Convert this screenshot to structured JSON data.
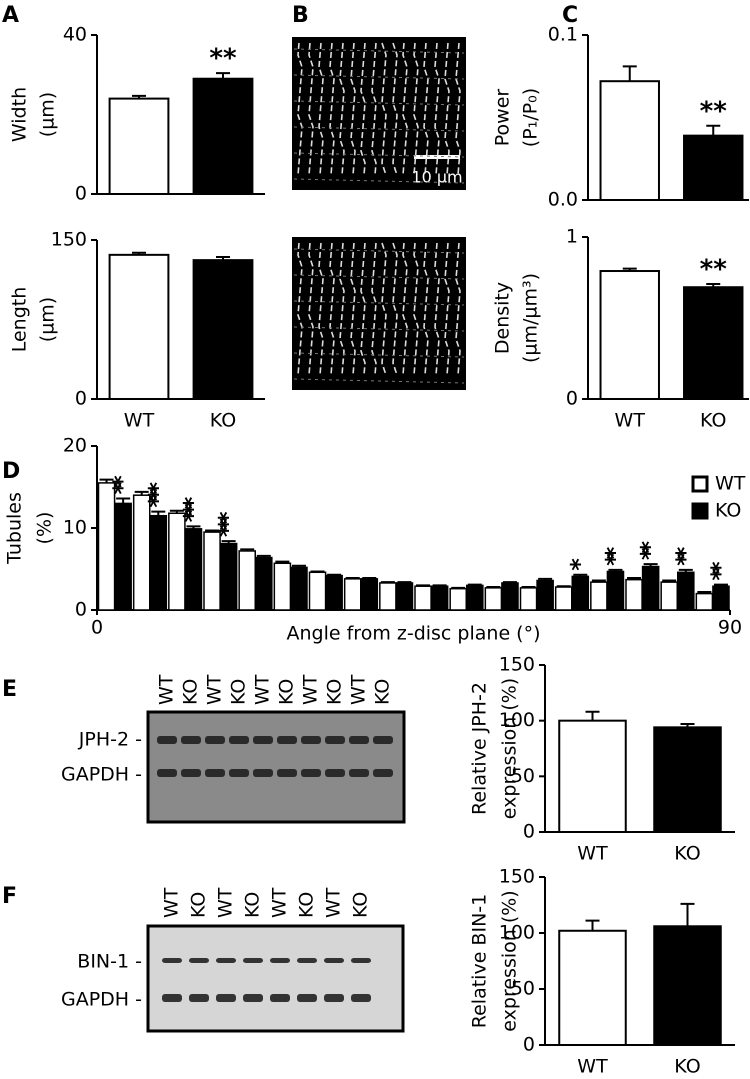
{
  "panels": {
    "labels": [
      "A",
      "B",
      "C",
      "D",
      "E",
      "F"
    ]
  },
  "images": {
    "scale_bar": "10 µm"
  },
  "blots": [
    {
      "lanes": [
        "WT",
        "KO",
        "WT",
        "KO",
        "WT",
        "KO",
        "WT",
        "KO",
        "WT",
        "KO"
      ],
      "bands": [
        "JPH-2 -",
        "GAPDH -"
      ]
    },
    {
      "lanes": [
        "WT",
        "KO",
        "WT",
        "KO",
        "WT",
        "KO",
        "WT",
        "KO"
      ],
      "bands": [
        "BIN-1 -",
        "GAPDH -"
      ]
    }
  ],
  "chart_data": [
    {
      "type": "bar",
      "categories": [
        null,
        null
      ],
      "values": [
        24,
        29
      ],
      "errors": [
        0.7,
        1.4
      ],
      "colors": [
        "#ffffff",
        "#000000"
      ],
      "annotations": [
        null,
        "**"
      ],
      "ylabel": [
        "Width",
        "(µm)"
      ],
      "ylim": [
        0,
        40
      ],
      "yticks": [
        0,
        40
      ]
    },
    {
      "type": "bar",
      "categories": [
        "WT",
        "KO"
      ],
      "values": [
        136,
        131
      ],
      "errors": [
        2,
        3
      ],
      "colors": [
        "#ffffff",
        "#000000"
      ],
      "ylabel": [
        "Length",
        "(µm)"
      ],
      "ylim": [
        0,
        150
      ],
      "yticks": [
        0,
        150
      ]
    },
    {
      "type": "bar",
      "categories": [
        null,
        null
      ],
      "values": [
        0.072,
        0.039
      ],
      "errors": [
        0.009,
        0.006
      ],
      "colors": [
        "#ffffff",
        "#000000"
      ],
      "annotations": [
        null,
        "**"
      ],
      "ylabel": [
        "Power",
        "(P₁/P₀)"
      ],
      "ylim": [
        0,
        0.1
      ],
      "yticks": [
        {
          "value": 0,
          "label": "0.0"
        },
        0.1
      ]
    },
    {
      "type": "bar",
      "categories": [
        "WT",
        "KO"
      ],
      "values": [
        0.79,
        0.69
      ],
      "errors": [
        0.015,
        0.02
      ],
      "colors": [
        "#ffffff",
        "#000000"
      ],
      "annotations": [
        null,
        "**"
      ],
      "ylabel": [
        "Density",
        "(µm/µm³)"
      ],
      "ylim": [
        0,
        1
      ],
      "yticks": [
        0,
        1
      ]
    },
    {
      "type": "histbar",
      "x": [
        2.5,
        7.5,
        12.5,
        17.5,
        22.5,
        27.5,
        32.5,
        37.5,
        42.5,
        47.5,
        52.5,
        57.5,
        62.5,
        67.5,
        72.5,
        77.5,
        82.5,
        87.5
      ],
      "series": [
        {
          "name": "WT",
          "color": "#ffffff",
          "values": [
            15.5,
            14,
            11.8,
            9.5,
            7.2,
            5.7,
            4.6,
            3.8,
            3.3,
            2.9,
            2.6,
            2.7,
            2.7,
            2.8,
            3.4,
            3.7,
            3.4,
            2.0
          ],
          "errors": [
            0.4,
            0.4,
            0.3,
            0.2,
            0.2,
            0.2,
            0.1,
            0.1,
            0.1,
            0.1,
            0.1,
            0.1,
            0.1,
            0.1,
            0.2,
            0.2,
            0.2,
            0.2
          ]
        },
        {
          "name": "KO",
          "color": "#000000",
          "values": [
            13,
            11.5,
            9.9,
            8.1,
            6.4,
            5.2,
            4.2,
            3.8,
            3.3,
            2.9,
            3.0,
            3.3,
            3.6,
            4.1,
            4.7,
            5.3,
            4.6,
            2.9
          ],
          "errors": [
            0.6,
            0.5,
            0.3,
            0.3,
            0.2,
            0.2,
            0.1,
            0.1,
            0.1,
            0.1,
            0.1,
            0.1,
            0.2,
            0.2,
            0.2,
            0.3,
            0.3,
            0.2
          ],
          "significance": [
            "**",
            "***",
            "***",
            "***",
            null,
            null,
            null,
            null,
            null,
            null,
            null,
            null,
            null,
            "*",
            "**",
            "**",
            "**",
            "**"
          ]
        }
      ],
      "ylabel": [
        "Tubules",
        "(%)"
      ],
      "xlabel": "Angle from z-disc plane (°)",
      "legend": "upper right",
      "xlim": [
        0,
        90
      ],
      "xticks": [
        0,
        90
      ],
      "ylim": [
        0,
        20
      ],
      "yticks": [
        0,
        10,
        20
      ]
    },
    {
      "type": "bar",
      "categories": [
        "WT",
        "KO"
      ],
      "values": [
        100,
        94
      ],
      "errors": [
        8,
        3
      ],
      "colors": [
        "#ffffff",
        "#000000"
      ],
      "ylabel": [
        "Relative JPH-2",
        "expression (%)"
      ],
      "ylim": [
        0,
        150
      ],
      "yticks": [
        0,
        50,
        100,
        150
      ]
    },
    {
      "type": "bar",
      "categories": [
        "WT",
        "KO"
      ],
      "values": [
        102,
        106
      ],
      "errors": [
        9,
        20
      ],
      "colors": [
        "#ffffff",
        "#000000"
      ],
      "ylabel": [
        "Relative BIN-1",
        "expression (%)"
      ],
      "ylim": [
        0,
        150
      ],
      "yticks": [
        0,
        50,
        100,
        150
      ]
    }
  ]
}
